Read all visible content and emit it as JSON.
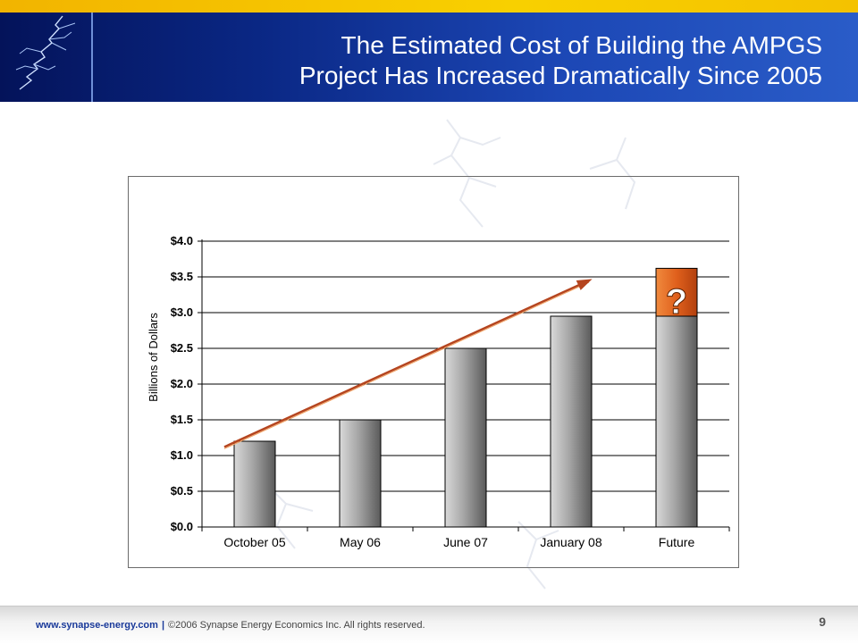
{
  "slide": {
    "title_line1": "The Estimated Cost of Building the AMPGS",
    "title_line2": "Project Has Increased Dramatically Since 2005",
    "page_number": "9"
  },
  "footer": {
    "url": "www.synapse-energy.com",
    "separator": "|",
    "copyright": "©2006 Synapse Energy Economics Inc. All rights reserved."
  },
  "colors": {
    "header_dark": "#04135a",
    "header_light": "#2a5cc8",
    "accent_yellow": "#f4c200",
    "trend_arrow": "#b5451f",
    "question_box": "#e0601c"
  },
  "chart_data": {
    "type": "bar",
    "title": "",
    "ylabel": "Billions of Dollars",
    "xlabel": "",
    "categories": [
      "October 05",
      "May 06",
      "June 07",
      "January 08",
      "Future"
    ],
    "values": [
      1.2,
      1.5,
      2.5,
      2.95,
      2.95
    ],
    "ylim": [
      0,
      4.0
    ],
    "yticks": [
      0.0,
      0.5,
      1.0,
      1.5,
      2.0,
      2.5,
      3.0,
      3.5,
      4.0
    ],
    "ytick_labels": [
      "$0.0",
      "$0.5",
      "$1.0",
      "$1.5",
      "$2.0",
      "$2.5",
      "$3.0",
      "$3.5",
      "$4.0"
    ],
    "grid": true,
    "future_uncertainty": {
      "from": 2.95,
      "to": 3.62,
      "label": "?"
    },
    "trend_arrow": {
      "from": {
        "x": "October 05",
        "y": 1.12
      },
      "to": {
        "x": "January 08",
        "y": 3.45
      }
    }
  }
}
